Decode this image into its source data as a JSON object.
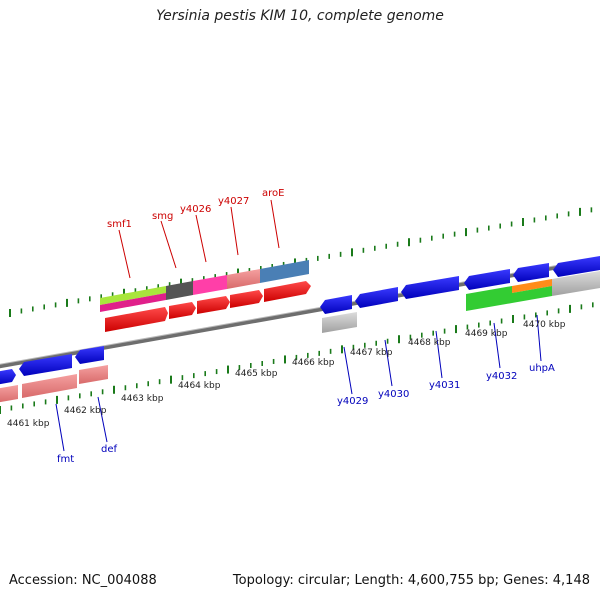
{
  "title": "Yersinia pestis KIM 10, complete genome",
  "accession": "Accession: NC_004088",
  "stats": "Topology: circular; Length: 4,600,755 bp; Genes: 4,148",
  "kbp_labels": [
    "4461 kbp",
    "4462 kbp",
    "4463 kbp",
    "4464 kbp",
    "4465 kbp",
    "4466 kbp",
    "4467 kbp",
    "4468 kbp",
    "4469 kbp",
    "4470 kbp"
  ],
  "genes_top": [
    "smf1",
    "smg",
    "y4026",
    "y4027",
    "aroE"
  ],
  "genes_bottom": [
    "fmt",
    "def",
    "y4029",
    "y4030",
    "y4031",
    "y4032",
    "uhpA"
  ],
  "colors": {
    "backbone": "#808080",
    "tick": "#1a7a1a",
    "forward_cds": "#ff0000",
    "reverse_cds": "#0000ee",
    "label_top": "#cc0000",
    "label_bottom": "#0000bb"
  }
}
